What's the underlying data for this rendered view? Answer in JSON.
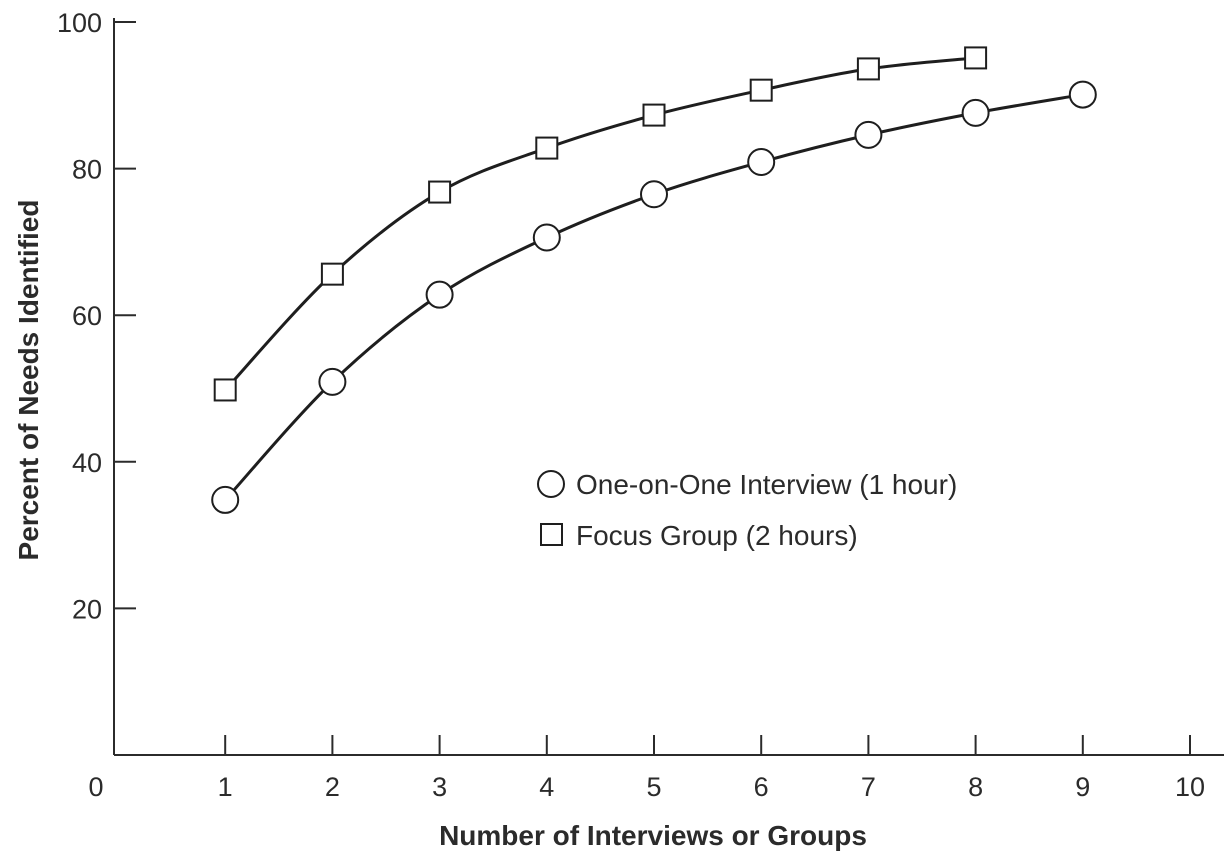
{
  "chart_data": {
    "type": "line",
    "title": "",
    "xlabel": "Number of Interviews or Groups",
    "ylabel": "Percent of Needs Identified",
    "xlim": [
      0,
      10
    ],
    "ylim": [
      0,
      100
    ],
    "x_ticks": [
      0,
      1,
      2,
      3,
      4,
      5,
      6,
      7,
      8,
      9,
      10
    ],
    "y_ticks": [
      20,
      40,
      60,
      80,
      100
    ],
    "grid": false,
    "legend_position": "center",
    "series": [
      {
        "name": "One-on-One Interview (1 hour)",
        "marker": "circle",
        "x": [
          1,
          2,
          3,
          4,
          5,
          6,
          7,
          8,
          9
        ],
        "values": [
          34.8,
          50.9,
          62.8,
          70.6,
          76.5,
          80.9,
          84.6,
          87.6,
          90.1
        ]
      },
      {
        "name": "Focus Group (2 hours)",
        "marker": "square",
        "x": [
          1,
          2,
          3,
          4,
          5,
          6,
          7,
          8
        ],
        "values": [
          49.8,
          65.6,
          76.8,
          82.8,
          87.3,
          90.7,
          93.6,
          95.1
        ]
      }
    ]
  }
}
